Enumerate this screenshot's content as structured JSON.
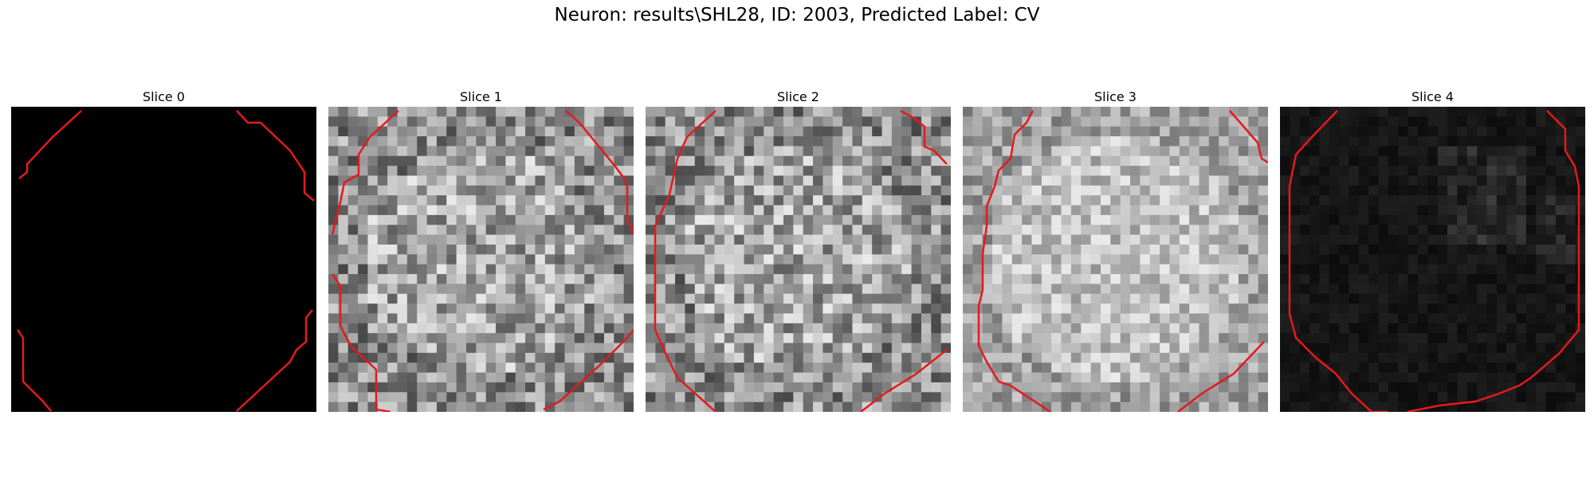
{
  "figure": {
    "title": "Neuron: results\\SHL28, ID: 2003, Predicted Label: CV",
    "contour_color": "#e41a1c"
  },
  "panels": [
    {
      "title": "Slice 0",
      "style": "black",
      "contour": {
        "segments": [
          [
            [
              88,
              5
            ],
            [
              52,
              38
            ],
            [
              20,
              72
            ],
            [
              20,
              82
            ],
            [
              10,
              90
            ]
          ],
          [
            [
              283,
              5
            ],
            [
              297,
              20
            ],
            [
              313,
              20
            ],
            [
              350,
              55
            ],
            [
              368,
              82
            ],
            [
              368,
              108
            ],
            [
              380,
              118
            ]
          ],
          [
            [
              8,
              280
            ],
            [
              15,
              290
            ],
            [
              15,
              345
            ],
            [
              40,
              370
            ],
            [
              50,
              382
            ]
          ],
          [
            [
              283,
              382
            ],
            [
              350,
              320
            ],
            [
              358,
              305
            ],
            [
              370,
              295
            ],
            [
              370,
              265
            ],
            [
              378,
              255
            ]
          ]
        ]
      }
    },
    {
      "title": "Slice 1",
      "style": "noise",
      "contour": {
        "segments": [
          [
            [
              88,
              5
            ],
            [
              52,
              38
            ],
            [
              38,
              60
            ],
            [
              38,
              85
            ],
            [
              20,
              95
            ],
            [
              15,
              120
            ],
            [
              5,
              160
            ]
          ],
          [
            [
              298,
              5
            ],
            [
              315,
              20
            ],
            [
              360,
              75
            ],
            [
              375,
              95
            ],
            [
              375,
              140
            ],
            [
              383,
              160
            ]
          ],
          [
            [
              5,
              210
            ],
            [
              15,
              225
            ],
            [
              15,
              275
            ],
            [
              28,
              300
            ],
            [
              60,
              330
            ],
            [
              60,
              380
            ],
            [
              78,
              383
            ]
          ],
          [
            [
              270,
              380
            ],
            [
              290,
              370
            ],
            [
              340,
              325
            ],
            [
              375,
              290
            ],
            [
              383,
              280
            ]
          ]
        ]
      }
    },
    {
      "title": "Slice 2",
      "style": "noise",
      "contour": {
        "segments": [
          [
            [
              88,
              5
            ],
            [
              52,
              38
            ],
            [
              40,
              65
            ],
            [
              30,
              110
            ],
            [
              12,
              150
            ],
            [
              12,
              280
            ],
            [
              30,
              320
            ],
            [
              40,
              340
            ],
            [
              88,
              383
            ]
          ],
          [
            [
              320,
              5
            ],
            [
              338,
              15
            ],
            [
              350,
              25
            ],
            [
              350,
              50
            ],
            [
              362,
              55
            ],
            [
              378,
              72
            ]
          ],
          [
            [
              270,
              383
            ],
            [
              300,
              360
            ],
            [
              340,
              335
            ],
            [
              378,
              305
            ]
          ]
        ]
      }
    },
    {
      "title": "Slice 3",
      "style": "noise-light",
      "contour": {
        "segments": [
          [
            [
              88,
              5
            ],
            [
              80,
              20
            ],
            [
              65,
              35
            ],
            [
              60,
              65
            ],
            [
              45,
              80
            ],
            [
              40,
              100
            ],
            [
              30,
              125
            ],
            [
              30,
              150
            ],
            [
              25,
              185
            ],
            [
              25,
              230
            ],
            [
              20,
              250
            ],
            [
              20,
              300
            ],
            [
              30,
              320
            ],
            [
              45,
              345
            ],
            [
              60,
              350
            ],
            [
              110,
              383
            ]
          ],
          [
            [
              335,
              5
            ],
            [
              370,
              45
            ],
            [
              375,
              65
            ],
            [
              383,
              70
            ]
          ],
          [
            [
              270,
              383
            ],
            [
              300,
              360
            ],
            [
              340,
              335
            ],
            [
              378,
              295
            ]
          ]
        ]
      }
    },
    {
      "title": "Slice 4",
      "style": "dark",
      "contour": {
        "segments": [
          [
            [
              72,
              5
            ],
            [
              40,
              38
            ],
            [
              20,
              60
            ],
            [
              12,
              100
            ],
            [
              12,
              260
            ],
            [
              20,
              290
            ],
            [
              45,
              315
            ],
            [
              70,
              335
            ],
            [
              90,
              360
            ],
            [
              115,
              383
            ],
            [
              135,
              383
            ]
          ],
          [
            [
              335,
              5
            ],
            [
              358,
              28
            ],
            [
              358,
              55
            ],
            [
              370,
              75
            ],
            [
              375,
              100
            ],
            [
              375,
              280
            ],
            [
              350,
              310
            ],
            [
              315,
              340
            ],
            [
              300,
              350
            ],
            [
              275,
              360
            ],
            [
              245,
              370
            ],
            [
              200,
              375
            ],
            [
              175,
              380
            ],
            [
              160,
              383
            ]
          ]
        ]
      }
    }
  ]
}
